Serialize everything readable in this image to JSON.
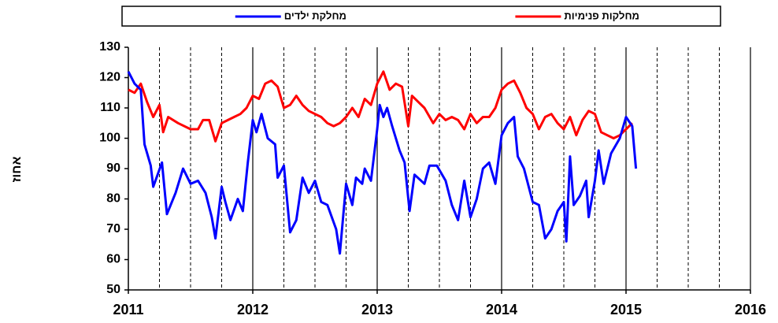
{
  "chart_data": {
    "type": "line",
    "y_label": "אחוז",
    "xlim": [
      2011,
      2016
    ],
    "xticks": [
      2011,
      2012,
      2013,
      2014,
      2015,
      2016
    ],
    "x_minor_ticks": [
      2011.25,
      2011.5,
      2011.75,
      2012.25,
      2012.5,
      2012.75,
      2013.25,
      2013.5,
      2013.75,
      2014.25,
      2014.5,
      2014.75,
      2015.25,
      2015.5,
      2015.75
    ],
    "ylim": [
      50,
      130
    ],
    "yticks": [
      50,
      60,
      70,
      80,
      90,
      100,
      110,
      120,
      130
    ],
    "grid": "x",
    "series": [
      {
        "name": "מחלקות פנימיות",
        "color": "#ff0000",
        "x": [
          2011.0,
          2011.05,
          2011.1,
          2011.15,
          2011.2,
          2011.25,
          2011.28,
          2011.32,
          2011.4,
          2011.5,
          2011.56,
          2011.6,
          2011.65,
          2011.7,
          2011.75,
          2011.8,
          2011.85,
          2011.9,
          2011.95,
          2012.0,
          2012.05,
          2012.1,
          2012.15,
          2012.2,
          2012.25,
          2012.3,
          2012.35,
          2012.4,
          2012.45,
          2012.5,
          2012.55,
          2012.6,
          2012.65,
          2012.7,
          2012.75,
          2012.8,
          2012.85,
          2012.9,
          2012.95,
          2013.0,
          2013.05,
          2013.1,
          2013.15,
          2013.2,
          2013.25,
          2013.28,
          2013.33,
          2013.38,
          2013.45,
          2013.5,
          2013.55,
          2013.6,
          2013.65,
          2013.7,
          2013.75,
          2013.8,
          2013.85,
          2013.9,
          2013.95,
          2014.0,
          2014.05,
          2014.1,
          2014.15,
          2014.2,
          2014.25,
          2014.3,
          2014.35,
          2014.4,
          2014.45,
          2014.5,
          2014.55,
          2014.6,
          2014.65,
          2014.7,
          2014.75,
          2014.8,
          2014.85,
          2014.9,
          2014.95,
          2015.0,
          2015.05
        ],
        "values": [
          116,
          115,
          118,
          112,
          107,
          111,
          102,
          107,
          105,
          103,
          103,
          106,
          106,
          99,
          105,
          106,
          107,
          108,
          110,
          114,
          113,
          118,
          119,
          117,
          110,
          111,
          114,
          111,
          109,
          108,
          107,
          105,
          104,
          105,
          107,
          110,
          107,
          113,
          111,
          118,
          122,
          116,
          118,
          117,
          104,
          114,
          112,
          110,
          105,
          108,
          106,
          107,
          106,
          103,
          108,
          105,
          107,
          107,
          110,
          116,
          118,
          119,
          115,
          110,
          108,
          103,
          107,
          108,
          105,
          103,
          107,
          101,
          106,
          109,
          108,
          102,
          101,
          100,
          101,
          103,
          105
        ]
      },
      {
        "name": "מחלקת ילדים",
        "color": "#0000ff",
        "x": [
          2011.0,
          2011.05,
          2011.1,
          2011.13,
          2011.18,
          2011.2,
          2011.27,
          2011.31,
          2011.38,
          2011.44,
          2011.5,
          2011.56,
          2011.62,
          2011.67,
          2011.7,
          2011.75,
          2011.78,
          2011.82,
          2011.88,
          2011.92,
          2011.96,
          2012.0,
          2012.03,
          2012.07,
          2012.12,
          2012.18,
          2012.2,
          2012.25,
          2012.3,
          2012.35,
          2012.4,
          2012.45,
          2012.5,
          2012.55,
          2012.6,
          2012.67,
          2012.7,
          2012.75,
          2012.8,
          2012.83,
          2012.88,
          2012.9,
          2012.95,
          2013.0,
          2013.02,
          2013.05,
          2013.08,
          2013.12,
          2013.18,
          2013.22,
          2013.26,
          2013.3,
          2013.38,
          2013.42,
          2013.48,
          2013.55,
          2013.6,
          2013.65,
          2013.7,
          2013.75,
          2013.8,
          2013.85,
          2013.9,
          2013.95,
          2014.0,
          2014.05,
          2014.1,
          2014.13,
          2014.18,
          2014.25,
          2014.3,
          2014.35,
          2014.4,
          2014.45,
          2014.5,
          2014.52,
          2014.55,
          2014.58,
          2014.63,
          2014.68,
          2014.7,
          2014.75,
          2014.78,
          2014.82,
          2014.88,
          2014.95,
          2015.0,
          2015.05,
          2015.08
        ],
        "values": [
          122,
          118,
          116,
          98,
          91,
          84,
          92,
          75,
          82,
          90,
          85,
          86,
          82,
          74,
          67,
          84,
          79,
          73,
          80,
          76,
          92,
          106,
          102,
          108,
          100,
          98,
          87,
          91,
          69,
          73,
          87,
          82,
          86,
          79,
          78,
          70,
          62,
          85,
          78,
          87,
          85,
          90,
          86,
          103,
          111,
          107,
          110,
          104,
          96,
          92,
          76,
          88,
          85,
          91,
          91,
          86,
          78,
          73,
          86,
          74,
          80,
          90,
          92,
          85,
          101,
          105,
          107,
          94,
          90,
          79,
          78,
          67,
          70,
          76,
          79,
          66,
          94,
          78,
          81,
          86,
          74,
          86,
          96,
          85,
          95,
          100,
          107,
          104,
          90
        ]
      }
    ]
  }
}
